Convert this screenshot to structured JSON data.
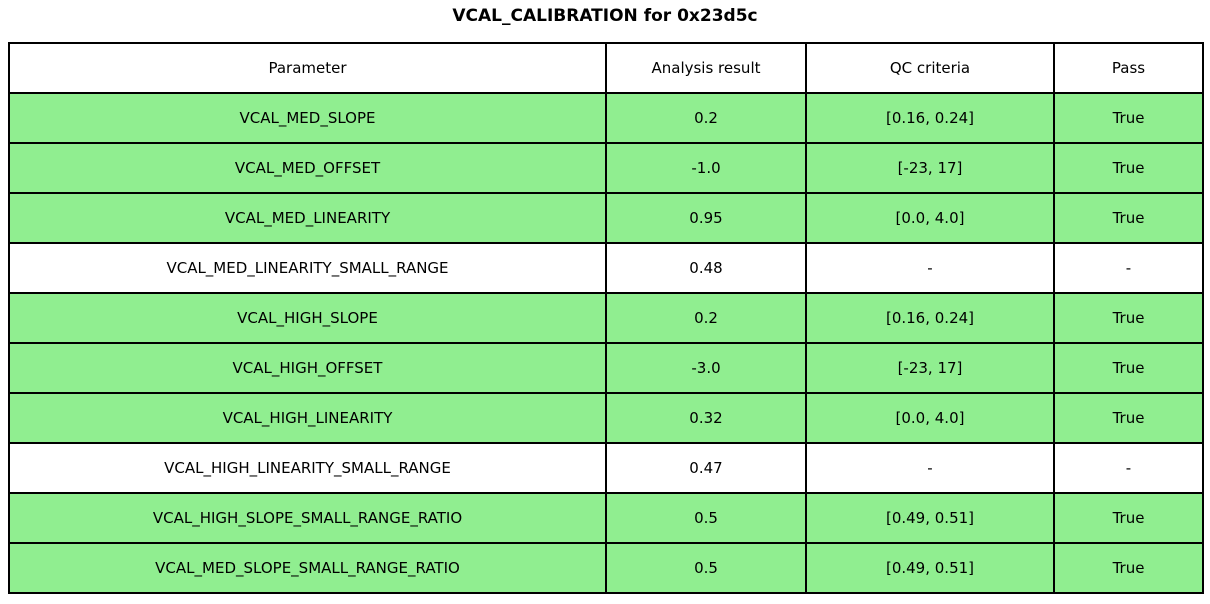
{
  "chart_data": {
    "type": "table",
    "title": "VCAL_CALIBRATION for 0x23d5c",
    "columns": [
      "Parameter",
      "Analysis result",
      "QC criteria",
      "Pass"
    ],
    "rows": [
      {
        "cells": [
          "VCAL_MED_SLOPE",
          "0.2",
          "[0.16, 0.24]",
          "True"
        ],
        "highlighted": true
      },
      {
        "cells": [
          "VCAL_MED_OFFSET",
          "-1.0",
          "[-23, 17]",
          "True"
        ],
        "highlighted": true
      },
      {
        "cells": [
          "VCAL_MED_LINEARITY",
          "0.95",
          "[0.0, 4.0]",
          "True"
        ],
        "highlighted": true
      },
      {
        "cells": [
          "VCAL_MED_LINEARITY_SMALL_RANGE",
          "0.48",
          "-",
          "-"
        ],
        "highlighted": false
      },
      {
        "cells": [
          "VCAL_HIGH_SLOPE",
          "0.2",
          "[0.16, 0.24]",
          "True"
        ],
        "highlighted": true
      },
      {
        "cells": [
          "VCAL_HIGH_OFFSET",
          "-3.0",
          "[-23, 17]",
          "True"
        ],
        "highlighted": true
      },
      {
        "cells": [
          "VCAL_HIGH_LINEARITY",
          "0.32",
          "[0.0, 4.0]",
          "True"
        ],
        "highlighted": true
      },
      {
        "cells": [
          "VCAL_HIGH_LINEARITY_SMALL_RANGE",
          "0.47",
          "-",
          "-"
        ],
        "highlighted": false
      },
      {
        "cells": [
          "VCAL_HIGH_SLOPE_SMALL_RANGE_RATIO",
          "0.5",
          "[0.49, 0.51]",
          "True"
        ],
        "highlighted": true
      },
      {
        "cells": [
          "VCAL_MED_SLOPE_SMALL_RANGE_RATIO",
          "0.5",
          "[0.49, 0.51]",
          "True"
        ],
        "highlighted": true
      }
    ],
    "colors": {
      "highlight_green": "#90EE90",
      "row_plain": "#FFFFFF",
      "border": "#000000",
      "text": "#000000"
    },
    "layout": {
      "grid": "all-cell-borders",
      "title_position": "top-center"
    }
  }
}
